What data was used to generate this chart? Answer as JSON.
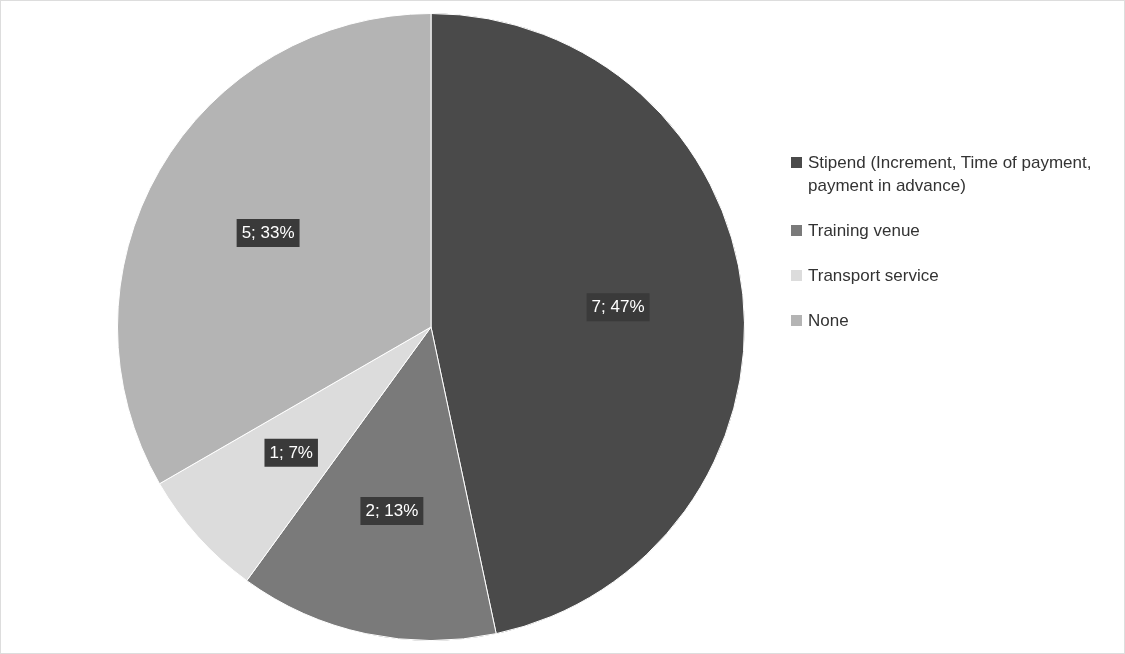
{
  "chart_data": {
    "type": "pie",
    "categories": [
      "Stipend (Increment, Time of payment, payment in advance)",
      "Training venue",
      "Transport service",
      "None"
    ],
    "values": [
      7,
      2,
      1,
      5
    ],
    "value_labels": [
      "7; 47%",
      "2; 13%",
      "1; 7%",
      "5; 33%"
    ],
    "colors": [
      "#4a4a4a",
      "#7a7a7a",
      "#dcdcdc",
      "#b4b4b4"
    ],
    "legend": "right"
  }
}
